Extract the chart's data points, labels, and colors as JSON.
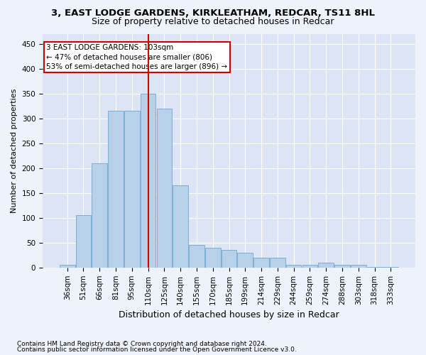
{
  "title": "3, EAST LODGE GARDENS, KIRKLEATHAM, REDCAR, TS11 8HL",
  "subtitle": "Size of property relative to detached houses in Redcar",
  "xlabel": "Distribution of detached houses by size in Redcar",
  "ylabel": "Number of detached properties",
  "categories": [
    "36sqm",
    "51sqm",
    "66sqm",
    "81sqm",
    "95sqm",
    "110sqm",
    "125sqm",
    "140sqm",
    "155sqm",
    "170sqm",
    "185sqm",
    "199sqm",
    "214sqm",
    "229sqm",
    "244sqm",
    "259sqm",
    "274sqm",
    "288sqm",
    "303sqm",
    "318sqm",
    "333sqm"
  ],
  "values": [
    5,
    105,
    210,
    315,
    315,
    350,
    320,
    165,
    45,
    40,
    35,
    30,
    20,
    20,
    5,
    5,
    10,
    5,
    5,
    1,
    1
  ],
  "bar_color": "#b8d0ea",
  "bar_edge_color": "#7aafd4",
  "vline_index": 5,
  "vline_color": "#cc0000",
  "annotation_text": "3 EAST LODGE GARDENS: 103sqm\n← 47% of detached houses are smaller (806)\n53% of semi-detached houses are larger (896) →",
  "annotation_box_color": "#ffffff",
  "annotation_box_edge": "#cc0000",
  "footnote1": "Contains HM Land Registry data © Crown copyright and database right 2024.",
  "footnote2": "Contains public sector information licensed under the Open Government Licence v3.0.",
  "ylim": [
    0,
    470
  ],
  "yticks": [
    0,
    50,
    100,
    150,
    200,
    250,
    300,
    350,
    400,
    450
  ],
  "bg_color": "#eef2fb",
  "plot_bg_color": "#dde5f5",
  "grid_color": "#ffffff",
  "title_fontsize": 9.5,
  "subtitle_fontsize": 9,
  "ylabel_fontsize": 8,
  "xlabel_fontsize": 9,
  "tick_fontsize": 7.5,
  "annot_fontsize": 7.5,
  "footnote_fontsize": 6.5
}
